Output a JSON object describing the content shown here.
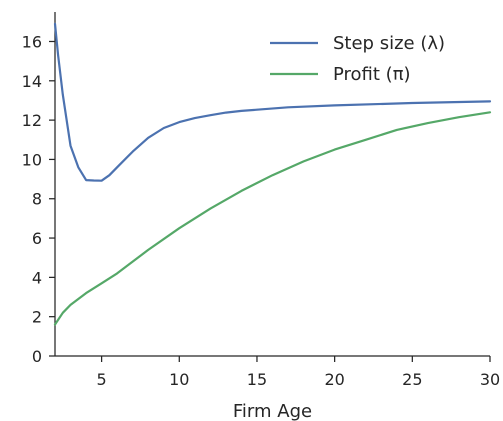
{
  "chart_data": {
    "type": "line",
    "title": "",
    "xlabel": "Firm Age",
    "ylabel": "",
    "xlim": [
      2,
      30
    ],
    "ylim": [
      0,
      17.5
    ],
    "xticks": [
      5,
      10,
      15,
      20,
      25,
      30
    ],
    "yticks": [
      0,
      2,
      4,
      6,
      8,
      10,
      12,
      14,
      16
    ],
    "grid": false,
    "legend": {
      "position": "top-right"
    },
    "series": [
      {
        "name": "Step size (λ)",
        "color": "#4c72b0",
        "x": [
          2,
          2.2,
          2.5,
          3,
          3.5,
          4,
          4.5,
          5,
          5.5,
          6,
          7,
          8,
          9,
          10,
          11,
          12,
          13,
          14,
          15,
          17,
          20,
          25,
          30
        ],
        "y": [
          16.9,
          15.3,
          13.3,
          10.7,
          9.6,
          8.95,
          8.93,
          8.92,
          9.2,
          9.6,
          10.4,
          11.1,
          11.6,
          11.9,
          12.1,
          12.25,
          12.38,
          12.47,
          12.53,
          12.65,
          12.75,
          12.87,
          12.95
        ]
      },
      {
        "name": "Profit (π)",
        "color": "#55a868",
        "x": [
          2,
          2.5,
          3,
          4,
          5,
          6,
          8,
          10,
          12,
          14,
          16,
          18,
          20,
          22,
          24,
          26,
          28,
          30
        ],
        "y": [
          1.6,
          2.2,
          2.6,
          3.2,
          3.7,
          4.2,
          5.4,
          6.5,
          7.5,
          8.4,
          9.2,
          9.9,
          10.5,
          11.0,
          11.5,
          11.85,
          12.15,
          12.4
        ]
      }
    ]
  }
}
